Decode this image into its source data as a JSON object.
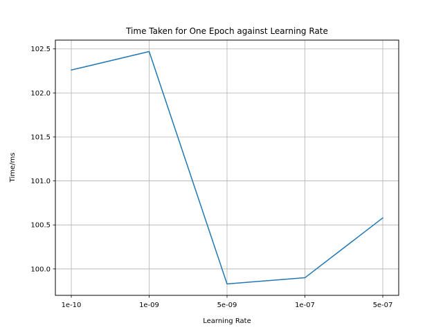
{
  "chart_data": {
    "type": "line",
    "title": "Time Taken for One Epoch against Learning Rate",
    "xlabel": "Learning Rate",
    "ylabel": "Time/ms",
    "categories": [
      "1e-10",
      "1e-09",
      "5e-09",
      "1e-07",
      "5e-07"
    ],
    "series": [
      {
        "values": [
          102.26,
          102.47,
          99.83,
          99.9,
          100.58
        ],
        "color": "#1f77b4"
      }
    ],
    "ylim": [
      99.7,
      102.6
    ],
    "yticks": [
      100.0,
      100.5,
      101.0,
      101.5,
      102.0,
      102.5
    ],
    "ytick_labels": [
      "100.0",
      "100.5",
      "101.0",
      "101.5",
      "102.0",
      "102.5"
    ],
    "grid": true
  }
}
